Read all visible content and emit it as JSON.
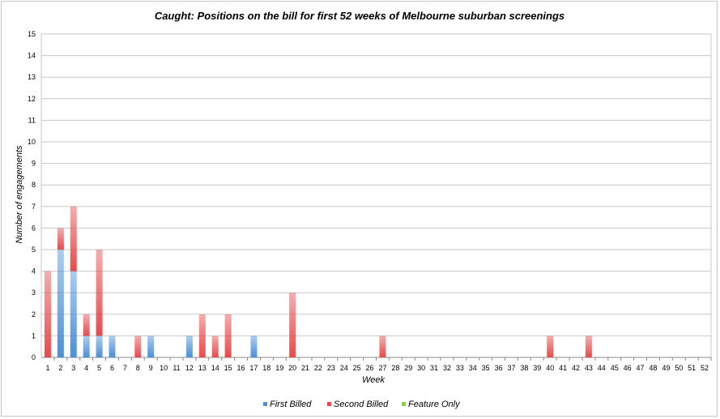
{
  "chart_data": {
    "type": "bar",
    "stacked": true,
    "title": "Caught: Positions on the bill for first 52 weeks of Melbourne suburban screenings",
    "xlabel": "Week",
    "ylabel": "Number of engagements",
    "ylim": [
      0,
      15
    ],
    "yticks": [
      "0",
      "1",
      "2",
      "3",
      "4",
      "5",
      "6",
      "7",
      "8",
      "9",
      "10",
      "11",
      "12",
      "13",
      "14",
      "15"
    ],
    "grid": true,
    "legend_position": "bottom",
    "categories": [
      "1",
      "2",
      "3",
      "4",
      "5",
      "6",
      "7",
      "8",
      "9",
      "10",
      "11",
      "12",
      "13",
      "14",
      "15",
      "16",
      "17",
      "18",
      "19",
      "20",
      "21",
      "22",
      "23",
      "24",
      "25",
      "26",
      "27",
      "28",
      "29",
      "30",
      "31",
      "32",
      "33",
      "34",
      "35",
      "36",
      "37",
      "38",
      "39",
      "40",
      "41",
      "42",
      "43",
      "44",
      "45",
      "46",
      "47",
      "48",
      "49",
      "50",
      "51",
      "52"
    ],
    "series": [
      {
        "name": "First Billed",
        "color": "#4a90d9",
        "values": [
          0,
          5,
          4,
          1,
          1,
          1,
          0,
          0,
          1,
          0,
          0,
          1,
          0,
          0,
          0,
          0,
          1,
          0,
          0,
          0,
          0,
          0,
          0,
          0,
          0,
          0,
          0,
          0,
          0,
          0,
          0,
          0,
          0,
          0,
          0,
          0,
          0,
          0,
          0,
          0,
          0,
          0,
          0,
          0,
          0,
          0,
          0,
          0,
          0,
          0,
          0,
          0
        ]
      },
      {
        "name": "Second Billed",
        "color": "#e84a4a",
        "values": [
          4,
          1,
          3,
          1,
          4,
          0,
          0,
          1,
          0,
          0,
          0,
          0,
          2,
          1,
          2,
          0,
          0,
          0,
          0,
          3,
          0,
          0,
          0,
          0,
          0,
          0,
          1,
          0,
          0,
          0,
          0,
          0,
          0,
          0,
          0,
          0,
          0,
          0,
          0,
          1,
          0,
          0,
          1,
          0,
          0,
          0,
          0,
          0,
          0,
          0,
          0,
          0
        ]
      },
      {
        "name": "Feature Only",
        "color": "#8fd14f",
        "values": [
          0,
          0,
          0,
          0,
          0,
          0,
          0,
          0,
          0,
          0,
          0,
          0,
          0,
          0,
          0,
          0,
          0,
          0,
          0,
          0,
          0,
          0,
          0,
          0,
          0,
          0,
          0,
          0,
          0,
          0,
          0,
          0,
          0,
          0,
          0,
          0,
          0,
          0,
          0,
          0,
          0,
          0,
          0,
          0,
          0,
          0,
          0,
          0,
          0,
          0,
          0,
          0
        ]
      }
    ]
  }
}
